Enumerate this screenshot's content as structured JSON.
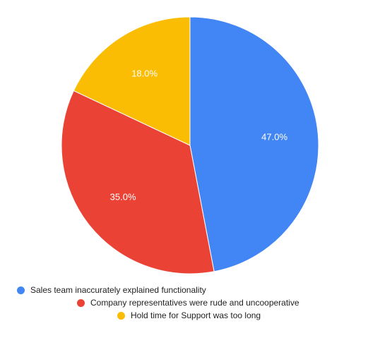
{
  "chart_data": {
    "type": "pie",
    "title": "",
    "start_angle_deg": 0,
    "direction": "clockwise",
    "legend_position": "bottom",
    "slices": [
      {
        "label": "Sales team inaccurately explained functionality",
        "value": 47.0,
        "value_label": "47.0%",
        "color": "#4285F4"
      },
      {
        "label": "Company representatives were rude and uncooperative",
        "value": 35.0,
        "value_label": "35.0%",
        "color": "#EA4335"
      },
      {
        "label": "Hold time for Support was too long",
        "value": 18.0,
        "value_label": "18.0%",
        "color": "#FBBC04"
      }
    ]
  }
}
